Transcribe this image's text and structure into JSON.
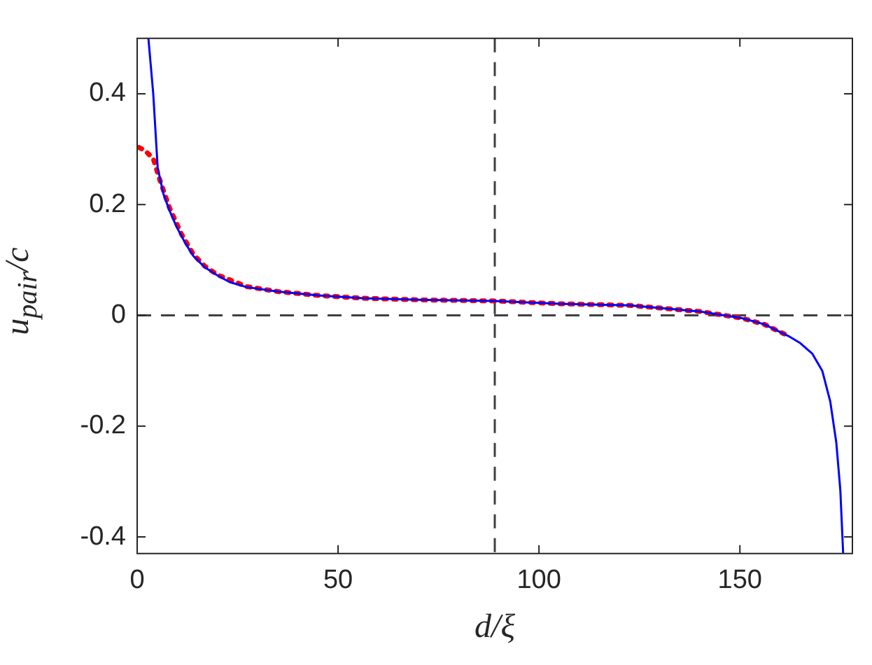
{
  "chart_data": {
    "type": "line",
    "xlabel": "d/ξ",
    "ylabel": "u$_{pair}$/c",
    "xlim": [
      0,
      178
    ],
    "ylim": [
      -0.43,
      0.5
    ],
    "xticks": [
      0,
      50,
      100,
      150
    ],
    "yticks": [
      -0.4,
      -0.2,
      0,
      0.2,
      0.4
    ],
    "grid": false,
    "legend": false,
    "series": [
      {
        "color": "#0000ff",
        "line_style": "solid",
        "x": [
          2.8,
          4.0,
          5.1,
          6.5,
          8,
          9.8,
          12,
          14,
          16.8,
          20,
          23,
          27.2,
          35,
          45,
          56,
          70,
          89,
          105,
          122.6,
          140,
          150.5,
          156,
          162,
          165,
          168,
          170.5,
          172.5,
          174,
          175,
          175.7
        ],
        "values": [
          0.5,
          0.4,
          0.267,
          0.22,
          0.19,
          0.16,
          0.13,
          0.107,
          0.087,
          0.072,
          0.06,
          0.051,
          0.043,
          0.036,
          0.031,
          0.028,
          0.026,
          0.021,
          0.018,
          0.007,
          -0.005,
          -0.016,
          -0.037,
          -0.05,
          -0.069,
          -0.1,
          -0.156,
          -0.23,
          -0.316,
          -0.43
        ]
      },
      {
        "color": "#ff0000",
        "line_style": "dotted",
        "x": [
          0.5,
          2,
          4,
          5.7,
          8,
          11,
          14,
          16.8,
          20,
          27.2,
          35,
          45,
          56,
          70,
          89,
          105,
          122.6,
          140,
          150.5,
          156,
          162
        ],
        "values": [
          0.303,
          0.297,
          0.283,
          0.243,
          0.195,
          0.147,
          0.11,
          0.089,
          0.073,
          0.052,
          0.043,
          0.036,
          0.031,
          0.028,
          0.026,
          0.021,
          0.018,
          0.007,
          -0.005,
          -0.016,
          -0.037
        ]
      }
    ],
    "ref_lines": [
      {
        "axis": "y",
        "value": 0,
        "color": "#404040",
        "line_style": "dashed"
      },
      {
        "axis": "x",
        "value": 89,
        "color": "#404040",
        "line_style": "dashed"
      }
    ]
  }
}
